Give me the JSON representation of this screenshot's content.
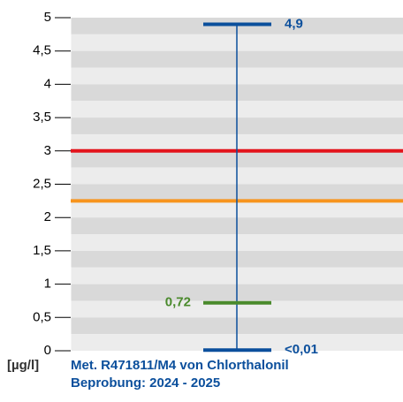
{
  "chart_data": {
    "type": "range",
    "title": "Met. R471811/M4 von Chlorthalonil",
    "subtitle": "Beprobung: 2024 - 2025",
    "unit": "[µg/l]",
    "ylim": [
      0,
      5
    ],
    "yticks": [
      0,
      {
        "value": 0.5,
        "label": "0,5"
      },
      1,
      {
        "value": 1.5,
        "label": "1,5"
      },
      2,
      {
        "value": 2.5,
        "label": "2,5"
      },
      3,
      {
        "value": 3.5,
        "label": "3,5"
      },
      4,
      {
        "value": 4.5,
        "label": "4,5"
      },
      5
    ],
    "values": [
      4.9,
      0.72,
      0.01
    ],
    "value_labels": [
      "4,9",
      "0,72",
      "<0,01"
    ],
    "colors": [
      "#0b4f9c",
      "#4a8a2c",
      "#0b4f9c"
    ],
    "whisker_color": "#0b4f9c",
    "thresholds": [
      3,
      2.25
    ],
    "threshold_colors": [
      "#e3131b",
      "#f7941d"
    ]
  }
}
